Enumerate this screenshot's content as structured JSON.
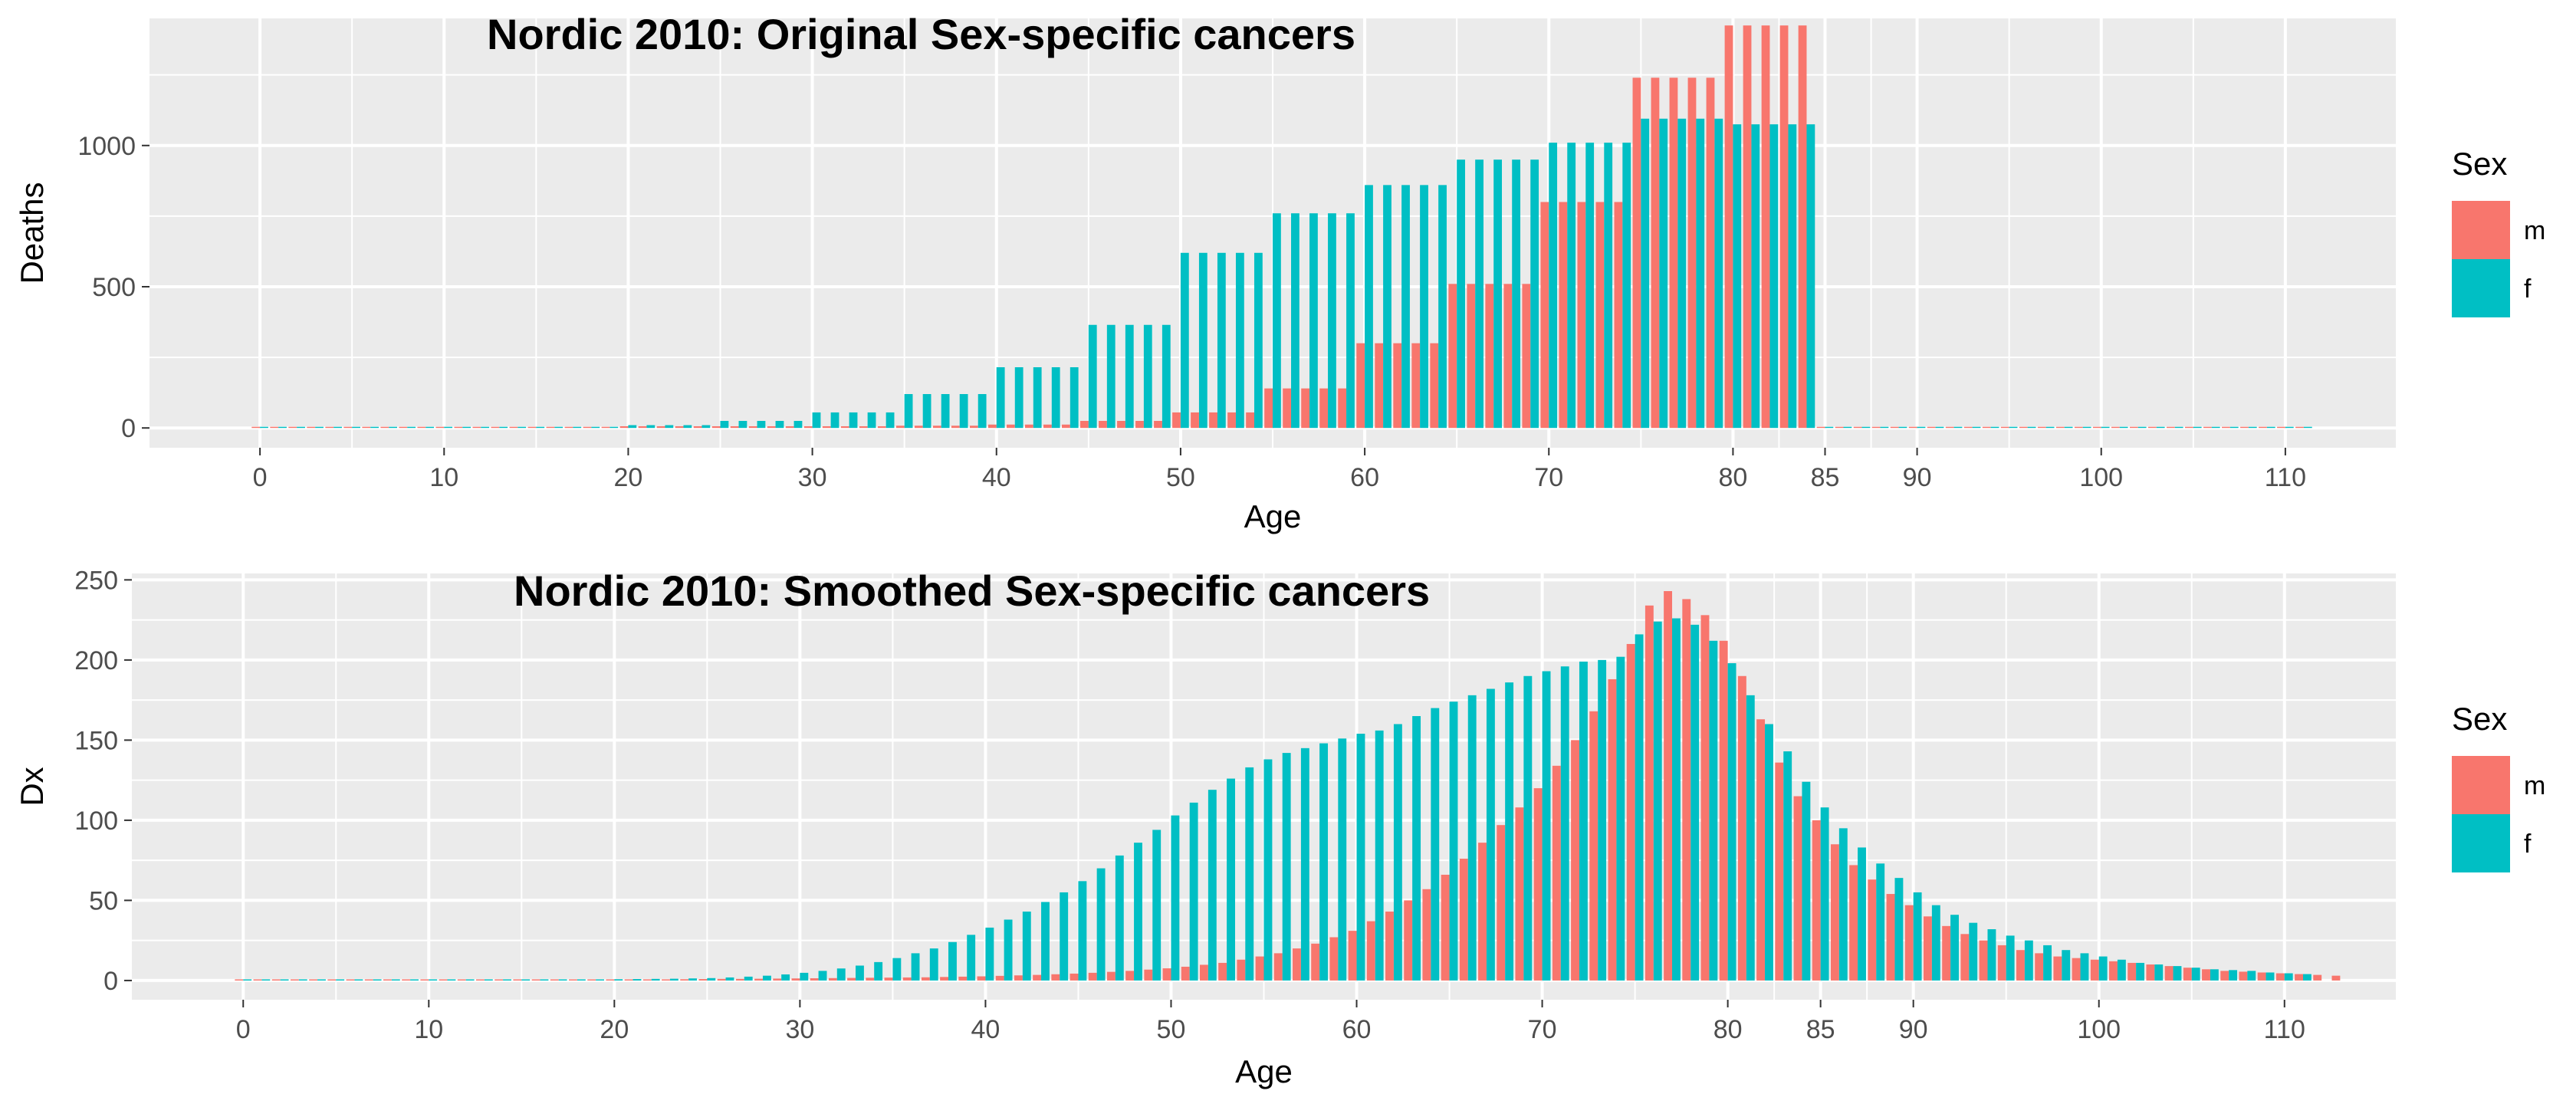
{
  "colors": {
    "m": "#F8766D",
    "f": "#00BFC4",
    "panel": "#EBEBEB",
    "grid": "#FFFFFF"
  },
  "chart_data": [
    {
      "type": "bar",
      "title": "Nordic 2010: Original Sex-specific cancers",
      "xlabel": "Age",
      "ylabel": "Deaths",
      "xlim": [
        -6,
        116
      ],
      "ylim": [
        -70,
        1450
      ],
      "x_breaks": [
        0,
        10,
        20,
        30,
        40,
        50,
        60,
        70,
        80,
        85,
        90,
        100,
        110
      ],
      "x_tick_labels": [
        "0",
        "10",
        "20",
        "30",
        "40",
        "50",
        "60",
        "70",
        "80",
        "85",
        "90",
        "100",
        "110"
      ],
      "y_breaks": [
        0,
        500,
        1000
      ],
      "y_tick_labels": [
        "0",
        "500",
        "1000"
      ],
      "legend": {
        "title": "Sex",
        "placement": "right",
        "labels": [
          "m",
          "f"
        ]
      },
      "grid": true,
      "age_start": 0,
      "series": [
        {
          "name": "m",
          "values": [
            1,
            1,
            1,
            1,
            1,
            1,
            1,
            1,
            1,
            1,
            1,
            1,
            1,
            1,
            1,
            1,
            1,
            1,
            1,
            1,
            6,
            6,
            6,
            6,
            6,
            6,
            6,
            6,
            6,
            6,
            6,
            6,
            6,
            6,
            6,
            8,
            8,
            8,
            8,
            8,
            12,
            12,
            12,
            12,
            12,
            25,
            25,
            25,
            25,
            25,
            55,
            55,
            55,
            55,
            55,
            140,
            140,
            140,
            140,
            140,
            300,
            300,
            300,
            300,
            300,
            510,
            510,
            510,
            510,
            510,
            800,
            800,
            800,
            800,
            800,
            1240,
            1240,
            1240,
            1240,
            1240,
            1425,
            1425,
            1425,
            1425,
            1425,
            1,
            1,
            1,
            1,
            1,
            1,
            1,
            1,
            1,
            1,
            1,
            1,
            1,
            1,
            1,
            1,
            1,
            1,
            1,
            1,
            1,
            1,
            1,
            1,
            1,
            1,
            1
          ]
        },
        {
          "name": "f",
          "values": [
            1,
            1,
            1,
            1,
            1,
            1,
            1,
            1,
            1,
            1,
            1,
            1,
            1,
            1,
            1,
            1,
            1,
            1,
            1,
            1,
            10,
            10,
            10,
            10,
            10,
            25,
            25,
            25,
            25,
            25,
            55,
            55,
            55,
            55,
            55,
            120,
            120,
            120,
            120,
            120,
            215,
            215,
            215,
            215,
            215,
            365,
            365,
            365,
            365,
            365,
            620,
            620,
            620,
            620,
            620,
            760,
            760,
            760,
            760,
            760,
            860,
            860,
            860,
            860,
            860,
            950,
            950,
            950,
            950,
            950,
            1010,
            1010,
            1010,
            1010,
            1010,
            1095,
            1095,
            1095,
            1095,
            1095,
            1075,
            1075,
            1075,
            1075,
            1075,
            1,
            1,
            1,
            1,
            1,
            1,
            1,
            1,
            1,
            1,
            1,
            1,
            1,
            1,
            1,
            1,
            1,
            1,
            1,
            1,
            1,
            1,
            1,
            1,
            1,
            1,
            1
          ]
        }
      ]
    },
    {
      "type": "bar",
      "title": "Nordic 2010: Smoothed Sex-specific cancers",
      "xlabel": "Age",
      "ylabel": "Dx",
      "xlim": [
        -6,
        116
      ],
      "ylim": [
        -12,
        254
      ],
      "x_breaks": [
        0,
        10,
        20,
        30,
        40,
        50,
        60,
        70,
        80,
        85,
        90,
        100,
        110
      ],
      "x_tick_labels": [
        "0",
        "10",
        "20",
        "30",
        "40",
        "50",
        "60",
        "70",
        "80",
        "85",
        "90",
        "100",
        "110"
      ],
      "y_breaks": [
        0,
        50,
        100,
        150,
        200,
        250
      ],
      "y_tick_labels": [
        "0",
        "50",
        "100",
        "150",
        "200",
        "250"
      ],
      "legend": {
        "title": "Sex",
        "placement": "right",
        "labels": [
          "m",
          "f"
        ]
      },
      "grid": true,
      "age_start": 0,
      "series": [
        {
          "name": "m",
          "values": [
            0.2,
            0.2,
            0.2,
            0.2,
            0.2,
            0.2,
            0.2,
            0.2,
            0.2,
            0.2,
            0.2,
            0.2,
            0.2,
            0.2,
            0.3,
            0.3,
            0.3,
            0.4,
            0.4,
            0.5,
            0.6,
            0.6,
            0.7,
            0.7,
            0.8,
            0.9,
            1,
            1,
            1.1,
            1.2,
            1.3,
            1.4,
            1.5,
            1.6,
            1.7,
            1.8,
            1.9,
            2,
            2.2,
            2.4,
            2.6,
            2.9,
            3.2,
            3.5,
            3.9,
            4.3,
            4.8,
            5.4,
            6,
            6.8,
            7.6,
            8.6,
            9.8,
            11,
            13,
            15,
            17,
            20,
            23,
            27,
            31,
            37,
            43,
            50,
            57,
            66,
            76,
            86,
            97,
            108,
            120,
            134,
            150,
            168,
            188,
            210,
            234,
            243,
            238,
            228,
            212,
            190,
            163,
            136,
            115,
            100,
            85,
            72,
            63,
            54,
            47,
            40,
            34,
            29,
            25,
            22,
            19,
            17,
            15,
            14,
            13,
            12,
            11,
            10,
            9,
            8,
            7,
            6,
            5.5,
            5,
            4.5,
            4,
            3.5,
            3
          ]
        },
        {
          "name": "f",
          "values": [
            0.2,
            0.2,
            0.2,
            0.2,
            0.2,
            0.2,
            0.2,
            0.2,
            0.2,
            0.2,
            0.2,
            0.3,
            0.3,
            0.3,
            0.4,
            0.4,
            0.5,
            0.5,
            0.6,
            0.7,
            0.8,
            0.9,
            1,
            1.1,
            1.3,
            1.5,
            1.9,
            2.4,
            3,
            3.8,
            4.8,
            6,
            7.5,
            9.3,
            11.5,
            14,
            17,
            20,
            24,
            28.5,
            33,
            38,
            43,
            49,
            55,
            62,
            70,
            78,
            86,
            94,
            103,
            111,
            119,
            126,
            133,
            138,
            142,
            145,
            148,
            151,
            154,
            156,
            160,
            165,
            170,
            174,
            178,
            182,
            186,
            190,
            193,
            196,
            199,
            200,
            202,
            216,
            224,
            226,
            222,
            212,
            198,
            178,
            160,
            143,
            124,
            108,
            95,
            83,
            73,
            64,
            55,
            47,
            41,
            36,
            32,
            28,
            25,
            22,
            19,
            17,
            15,
            13,
            11,
            10,
            9,
            8,
            7,
            6.5,
            6,
            5,
            4.5,
            4
          ]
        }
      ]
    }
  ]
}
